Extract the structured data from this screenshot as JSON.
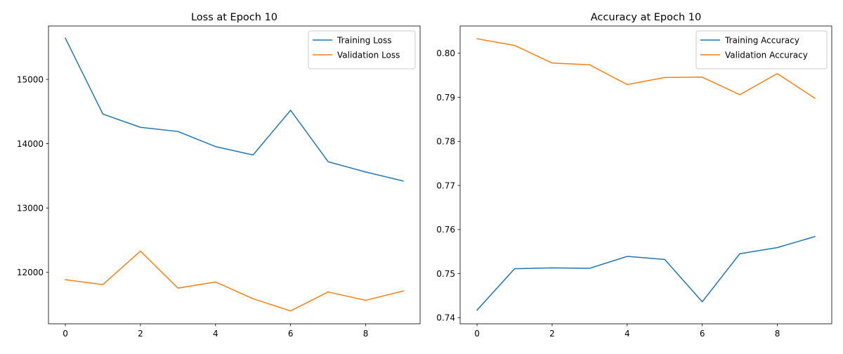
{
  "chart_data": [
    {
      "type": "line",
      "title": "Loss at Epoch 10",
      "xlabel": "",
      "ylabel": "",
      "xlim": [
        -0.45,
        9.45
      ],
      "ylim": [
        11200,
        15830
      ],
      "xticks": [
        0,
        2,
        4,
        6,
        8
      ],
      "yticks": [
        12000,
        13000,
        14000,
        15000
      ],
      "ytick_decimals": 0,
      "grid": false,
      "legend_position": "top-right",
      "x": [
        0,
        1,
        2,
        3,
        4,
        5,
        6,
        7,
        8,
        9
      ],
      "series": [
        {
          "name": "Training Loss",
          "color": "#1f77b4",
          "values": [
            15640,
            14460,
            14255,
            14190,
            13955,
            13825,
            14520,
            13720,
            13560,
            13420
          ]
        },
        {
          "name": "Validation Loss",
          "color": "#ff7f0e",
          "values": [
            11885,
            11810,
            12330,
            11755,
            11850,
            11590,
            11400,
            11695,
            11565,
            11710
          ]
        }
      ]
    },
    {
      "type": "line",
      "title": "Accuracy at Epoch 10",
      "xlabel": "",
      "ylabel": "",
      "xlim": [
        -0.45,
        9.45
      ],
      "ylim": [
        0.7386,
        0.8062
      ],
      "xticks": [
        0,
        2,
        4,
        6,
        8
      ],
      "yticks": [
        0.74,
        0.75,
        0.76,
        0.77,
        0.78,
        0.79,
        0.8
      ],
      "ytick_decimals": 2,
      "grid": false,
      "legend_position": "top-right",
      "x": [
        0,
        1,
        2,
        3,
        4,
        5,
        6,
        7,
        8,
        9
      ],
      "series": [
        {
          "name": "Training Accuracy",
          "color": "#1f77b4",
          "values": [
            0.7417,
            0.7511,
            0.7513,
            0.7512,
            0.7539,
            0.7532,
            0.7436,
            0.7545,
            0.7559,
            0.7584
          ]
        },
        {
          "name": "Validation Accuracy",
          "color": "#ff7f0e",
          "values": [
            0.8033,
            0.8018,
            0.7978,
            0.7974,
            0.7929,
            0.7945,
            0.7946,
            0.7906,
            0.7954,
            0.7898
          ]
        }
      ]
    }
  ]
}
